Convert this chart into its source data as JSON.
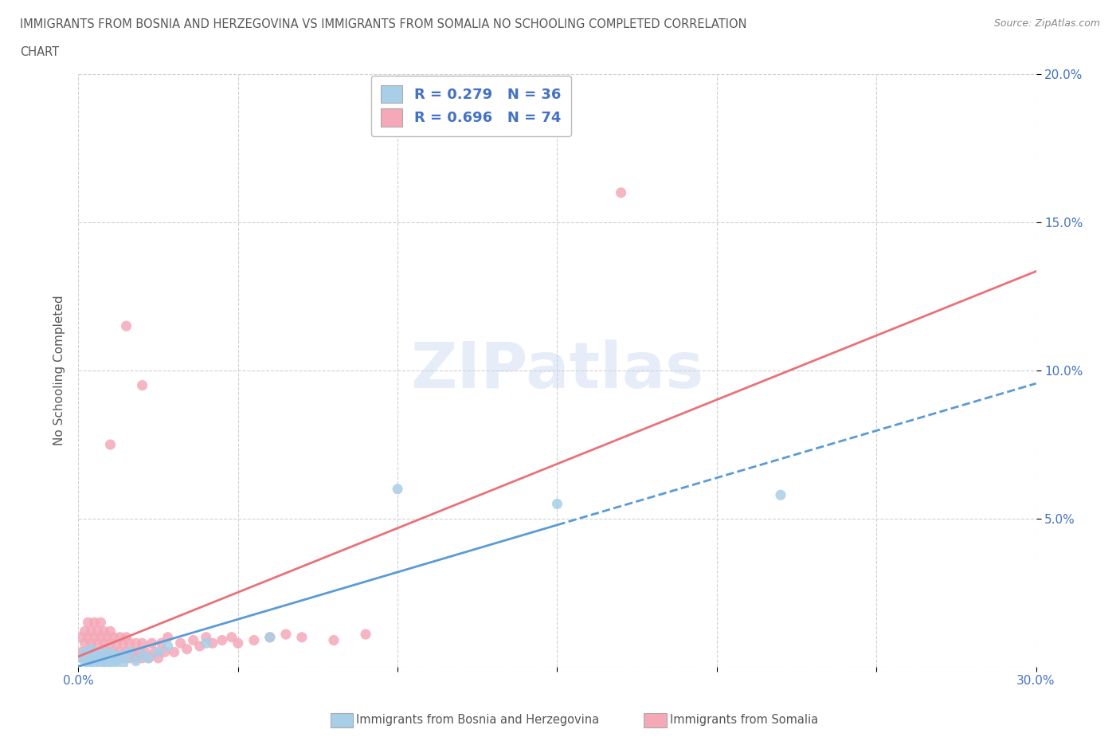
{
  "title_line1": "IMMIGRANTS FROM BOSNIA AND HERZEGOVINA VS IMMIGRANTS FROM SOMALIA NO SCHOOLING COMPLETED CORRELATION",
  "title_line2": "CHART",
  "source": "Source: ZipAtlas.com",
  "ylabel": "No Schooling Completed",
  "xlim": [
    0.0,
    0.3
  ],
  "ylim": [
    0.0,
    0.2
  ],
  "watermark": "ZIPatlas",
  "legend_r_bosnia": "R = 0.279",
  "legend_n_bosnia": "N = 36",
  "legend_r_somalia": "R = 0.696",
  "legend_n_somalia": "N = 74",
  "color_bosnia": "#A8CEE8",
  "color_somalia": "#F4A8B8",
  "color_bosnia_line": "#5B9BD5",
  "color_somalia_line": "#E8727A",
  "color_text_blue": "#4472C4",
  "color_title": "#595959",
  "bosnia_x": [
    0.001,
    0.002,
    0.002,
    0.003,
    0.003,
    0.004,
    0.004,
    0.005,
    0.005,
    0.006,
    0.006,
    0.007,
    0.007,
    0.008,
    0.008,
    0.009,
    0.009,
    0.01,
    0.01,
    0.011,
    0.011,
    0.012,
    0.013,
    0.014,
    0.015,
    0.016,
    0.018,
    0.02,
    0.022,
    0.025,
    0.028,
    0.04,
    0.06,
    0.1,
    0.15,
    0.22
  ],
  "bosnia_y": [
    0.003,
    0.002,
    0.005,
    0.001,
    0.004,
    0.002,
    0.006,
    0.001,
    0.003,
    0.002,
    0.004,
    0.001,
    0.005,
    0.002,
    0.003,
    0.001,
    0.004,
    0.002,
    0.005,
    0.001,
    0.003,
    0.002,
    0.004,
    0.001,
    0.003,
    0.005,
    0.002,
    0.004,
    0.003,
    0.005,
    0.007,
    0.008,
    0.01,
    0.06,
    0.055,
    0.058
  ],
  "somalia_x": [
    0.001,
    0.001,
    0.002,
    0.002,
    0.002,
    0.003,
    0.003,
    0.003,
    0.004,
    0.004,
    0.004,
    0.005,
    0.005,
    0.005,
    0.006,
    0.006,
    0.006,
    0.007,
    0.007,
    0.007,
    0.008,
    0.008,
    0.008,
    0.009,
    0.009,
    0.01,
    0.01,
    0.01,
    0.011,
    0.011,
    0.012,
    0.012,
    0.013,
    0.013,
    0.014,
    0.014,
    0.015,
    0.015,
    0.016,
    0.016,
    0.017,
    0.018,
    0.018,
    0.019,
    0.02,
    0.02,
    0.021,
    0.022,
    0.023,
    0.024,
    0.025,
    0.026,
    0.027,
    0.028,
    0.03,
    0.032,
    0.034,
    0.036,
    0.038,
    0.04,
    0.042,
    0.045,
    0.048,
    0.05,
    0.055,
    0.06,
    0.065,
    0.07,
    0.08,
    0.09,
    0.01,
    0.015,
    0.02,
    0.17
  ],
  "somalia_y": [
    0.005,
    0.01,
    0.003,
    0.008,
    0.012,
    0.005,
    0.01,
    0.015,
    0.003,
    0.008,
    0.012,
    0.005,
    0.01,
    0.015,
    0.003,
    0.008,
    0.012,
    0.005,
    0.01,
    0.015,
    0.003,
    0.008,
    0.012,
    0.005,
    0.01,
    0.003,
    0.008,
    0.012,
    0.005,
    0.01,
    0.003,
    0.008,
    0.005,
    0.01,
    0.003,
    0.008,
    0.005,
    0.01,
    0.003,
    0.008,
    0.005,
    0.003,
    0.008,
    0.005,
    0.003,
    0.008,
    0.005,
    0.003,
    0.008,
    0.005,
    0.003,
    0.008,
    0.005,
    0.01,
    0.005,
    0.008,
    0.006,
    0.009,
    0.007,
    0.01,
    0.008,
    0.009,
    0.01,
    0.008,
    0.009,
    0.01,
    0.011,
    0.01,
    0.009,
    0.011,
    0.075,
    0.115,
    0.095,
    0.16
  ],
  "grid_color": "#CCCCCC",
  "background_color": "#FFFFFF"
}
